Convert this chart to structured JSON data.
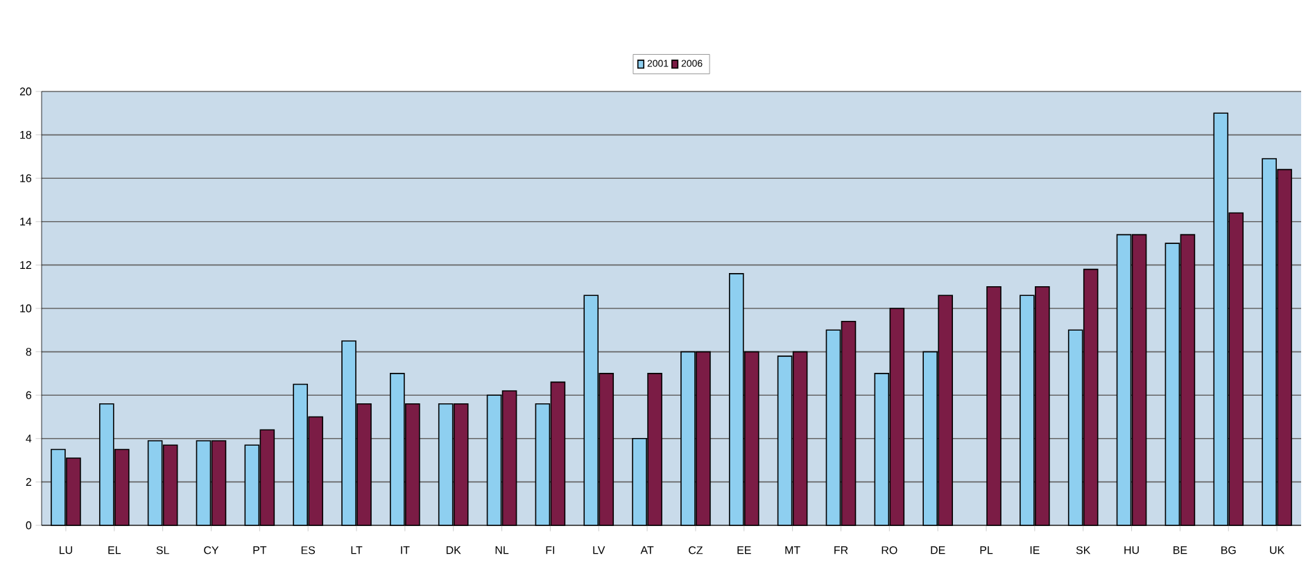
{
  "chart_data": {
    "type": "bar",
    "categories": [
      "LU",
      "EL",
      "SL",
      "CY",
      "PT",
      "ES",
      "LT",
      "IT",
      "DK",
      "NL",
      "FI",
      "LV",
      "AT",
      "CZ",
      "EE",
      "MT",
      "FR",
      "RO",
      "DE",
      "PL",
      "IE",
      "SK",
      "HU",
      "BE",
      "BG",
      "UK"
    ],
    "series": [
      {
        "name": "2001",
        "color": "#8ecff0",
        "values": [
          3.5,
          5.6,
          3.9,
          3.9,
          3.7,
          6.5,
          8.5,
          7.0,
          5.6,
          6.0,
          5.6,
          10.6,
          4.0,
          8.0,
          11.6,
          7.8,
          9.0,
          7.0,
          8.0,
          null,
          10.6,
          9.0,
          13.4,
          13.0,
          19.0,
          16.9
        ]
      },
      {
        "name": "2006",
        "color": "#7b1c45",
        "values": [
          3.1,
          3.5,
          3.7,
          3.9,
          4.4,
          5.0,
          5.6,
          5.6,
          5.6,
          6.2,
          6.6,
          7.0,
          7.0,
          8.0,
          8.0,
          8.0,
          9.4,
          10.0,
          10.6,
          11.0,
          11.0,
          11.8,
          13.4,
          13.4,
          14.4,
          16.4
        ]
      }
    ],
    "ylim": [
      0,
      20
    ],
    "yticks": [
      0,
      2,
      4,
      6,
      8,
      10,
      12,
      14,
      16,
      18,
      20
    ],
    "grid": "y",
    "legend": "top"
  }
}
